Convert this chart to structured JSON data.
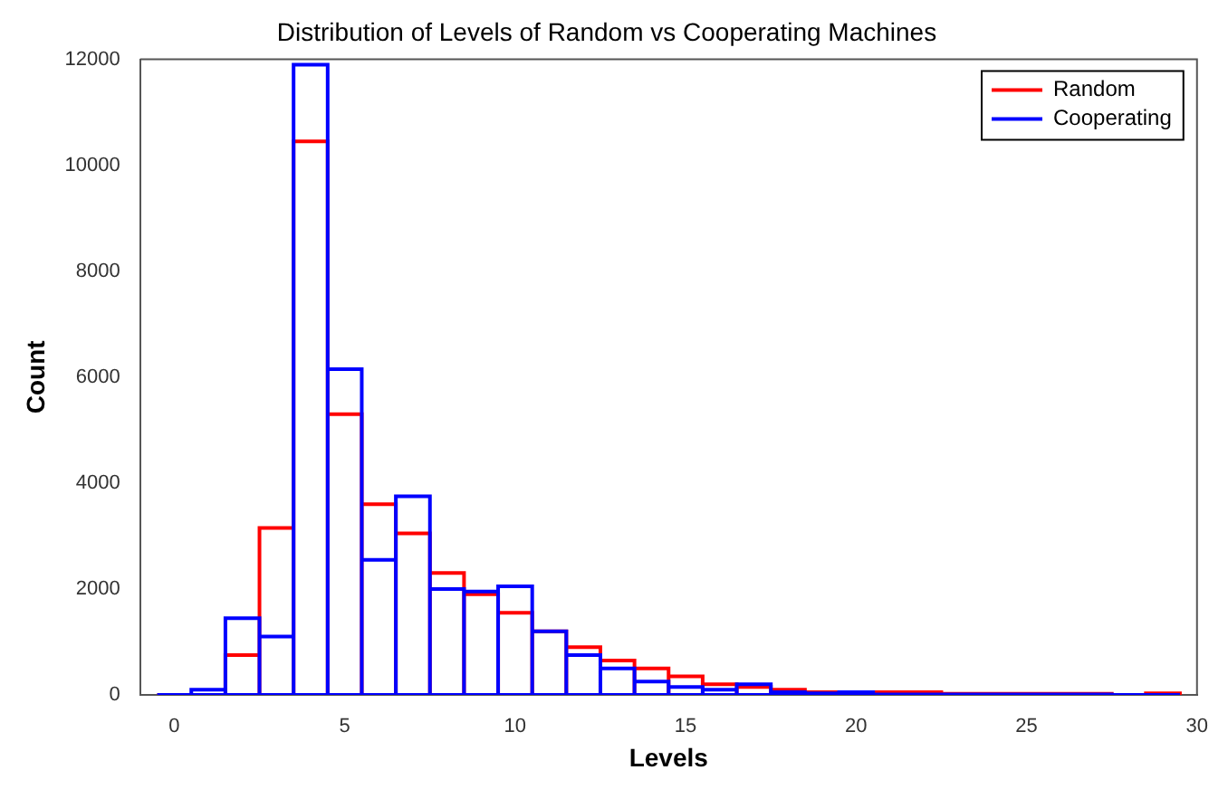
{
  "chart_data": {
    "type": "histogram",
    "title": "Distribution of Levels of Random vs Cooperating Machines",
    "xlabel": "Levels",
    "ylabel": "Count",
    "bins": [
      -0.5,
      0.5,
      1.5,
      2.5,
      3.5,
      4.5,
      5.5,
      6.5,
      7.5,
      8.5,
      9.5,
      10.5,
      11.5,
      12.5,
      13.5,
      14.5,
      15.5,
      16.5,
      17.5,
      18.5,
      19.5,
      20.5,
      21.5,
      22.5,
      23.5,
      24.5,
      25.5,
      26.5,
      27.5,
      28.5,
      29.5
    ],
    "series": [
      {
        "name": "Random",
        "color": "#ff0000",
        "values": [
          0,
          0,
          750,
          3150,
          10450,
          5300,
          3600,
          3050,
          2300,
          1900,
          1550,
          1200,
          900,
          650,
          500,
          350,
          200,
          150,
          100,
          50,
          40,
          50,
          50,
          20,
          20,
          20,
          20,
          20,
          0,
          30
        ]
      },
      {
        "name": "Cooperating",
        "color": "#0000ff",
        "values": [
          0,
          100,
          1450,
          1100,
          11900,
          6150,
          2550,
          3750,
          2000,
          1950,
          2050,
          1200,
          750,
          500,
          250,
          150,
          100,
          200,
          50,
          30,
          50,
          10,
          10,
          10,
          10,
          10,
          10,
          10,
          0,
          0
        ]
      }
    ],
    "xlim": [
      -1,
      30
    ],
    "xticks": [
      0,
      5,
      10,
      15,
      20,
      25,
      30
    ],
    "ylim": [
      0,
      12000
    ],
    "yticks": [
      0,
      2000,
      4000,
      6000,
      8000,
      10000,
      12000
    ],
    "grid": false,
    "legend": "top right"
  }
}
